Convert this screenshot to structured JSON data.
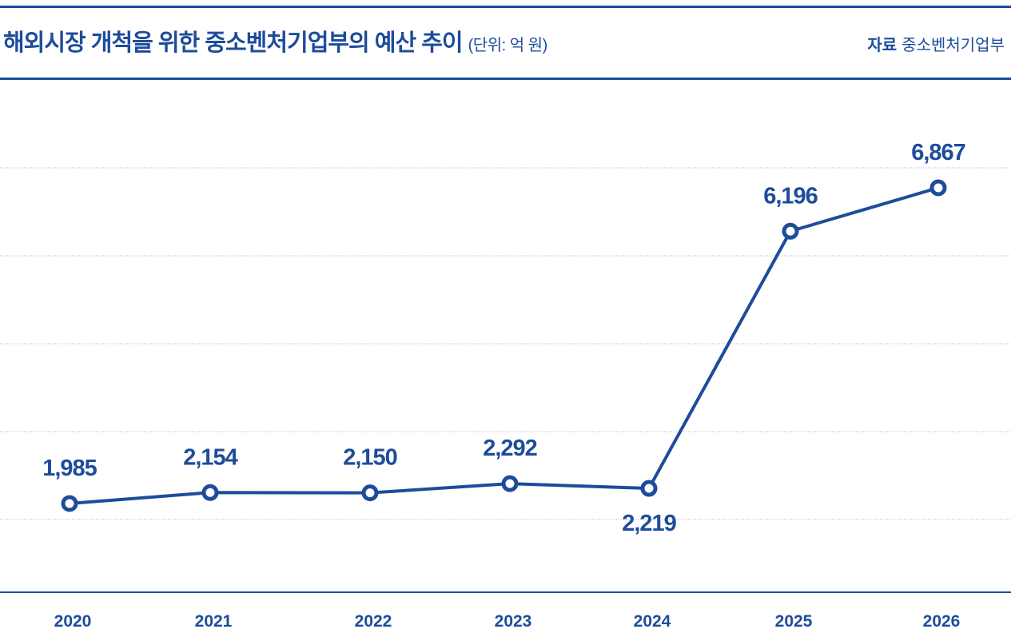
{
  "header": {
    "title": "해외시장 개척을 위한 중소벤처기업부의 예산 추이",
    "unit": "(단위: 억 원)",
    "source_label": "자료",
    "source_value": "중소벤처기업부"
  },
  "colors": {
    "accent": "#1d4c9b",
    "grid": "#b0b0b0"
  },
  "chart_data": {
    "type": "line",
    "title": "해외시장 개척을 위한 중소벤처기업부의 예산 추이",
    "xlabel": "",
    "ylabel": "억 원",
    "categories": [
      "2020",
      "2021",
      "2022",
      "2023",
      "2024",
      "2025",
      "2026"
    ],
    "values": [
      1985,
      2154,
      2150,
      2292,
      2219,
      6196,
      6867
    ],
    "data_labels": [
      "1,985",
      "2,154",
      "2,150",
      "2,292",
      "2,219",
      "6,196",
      "6,867"
    ],
    "ylim": [
      625,
      8560
    ],
    "grid": true,
    "legend": "none"
  }
}
